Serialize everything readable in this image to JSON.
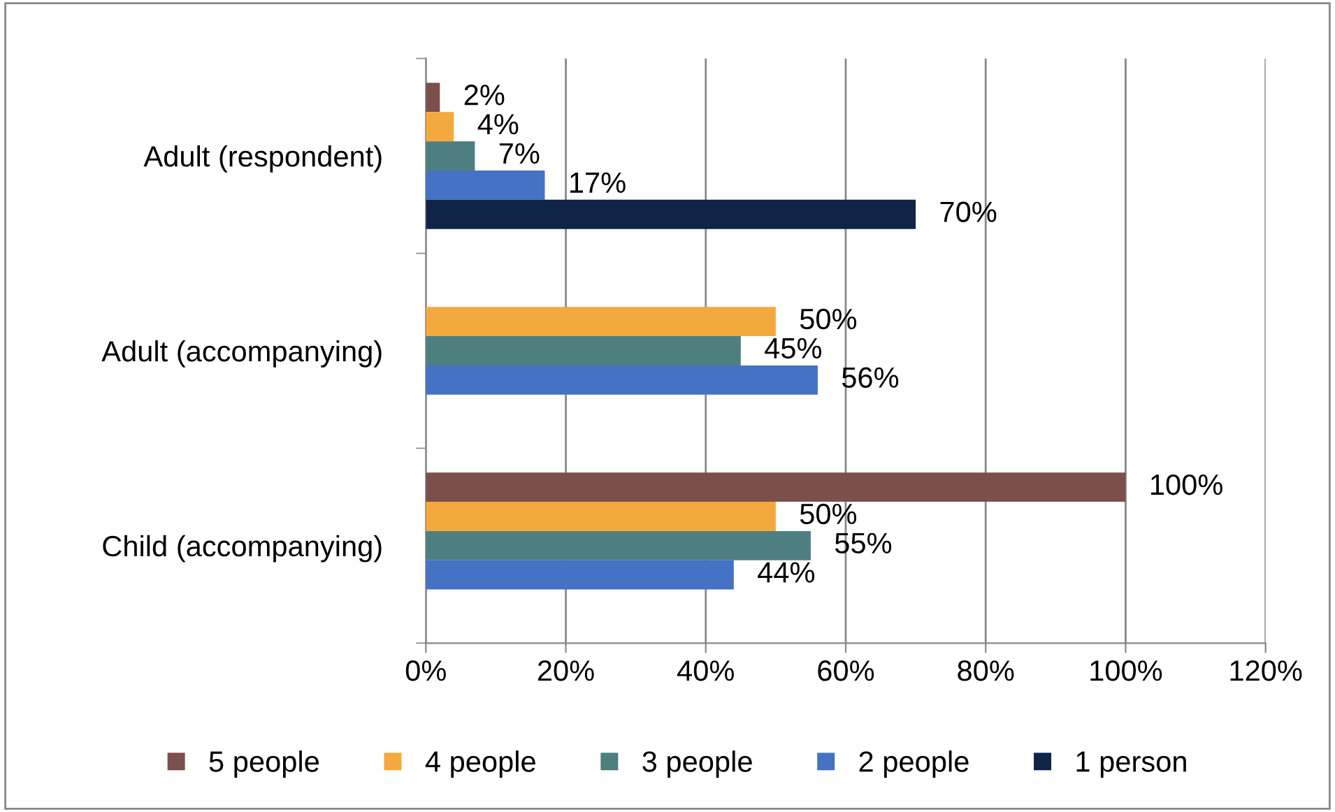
{
  "chart_data": {
    "type": "bar",
    "orientation": "horizontal",
    "categories": [
      "Adult (respondent)",
      "Adult (accompanying)",
      "Child (accompanying)"
    ],
    "series": [
      {
        "name": "5 people",
        "color": "#7b4f4a",
        "values": [
          2,
          null,
          100
        ],
        "value_labels": [
          "2%",
          null,
          "100%"
        ]
      },
      {
        "name": "4 people",
        "color": "#f4a93f",
        "values": [
          4,
          50,
          50
        ],
        "value_labels": [
          "4%",
          "50%",
          "50%"
        ]
      },
      {
        "name": "3 people",
        "color": "#4e7f80",
        "values": [
          7,
          45,
          55
        ],
        "value_labels": [
          "7%",
          "45%",
          "55%"
        ]
      },
      {
        "name": "2 people",
        "color": "#4472c4",
        "values": [
          17,
          56,
          44
        ],
        "value_labels": [
          "17%",
          "56%",
          "44%"
        ]
      },
      {
        "name": "1 person",
        "color": "#0f2446",
        "values": [
          70,
          null,
          null
        ],
        "value_labels": [
          "70%",
          null,
          null
        ]
      }
    ],
    "xlim": [
      0,
      120
    ],
    "xticks": [
      {
        "value": 0,
        "label": "0%"
      },
      {
        "value": 20,
        "label": "20%"
      },
      {
        "value": 40,
        "label": "40%"
      },
      {
        "value": 60,
        "label": "60%"
      },
      {
        "value": 80,
        "label": "80%"
      },
      {
        "value": 100,
        "label": "100%"
      },
      {
        "value": 120,
        "label": "120%"
      }
    ],
    "grid": "x",
    "legend": "bottom"
  }
}
